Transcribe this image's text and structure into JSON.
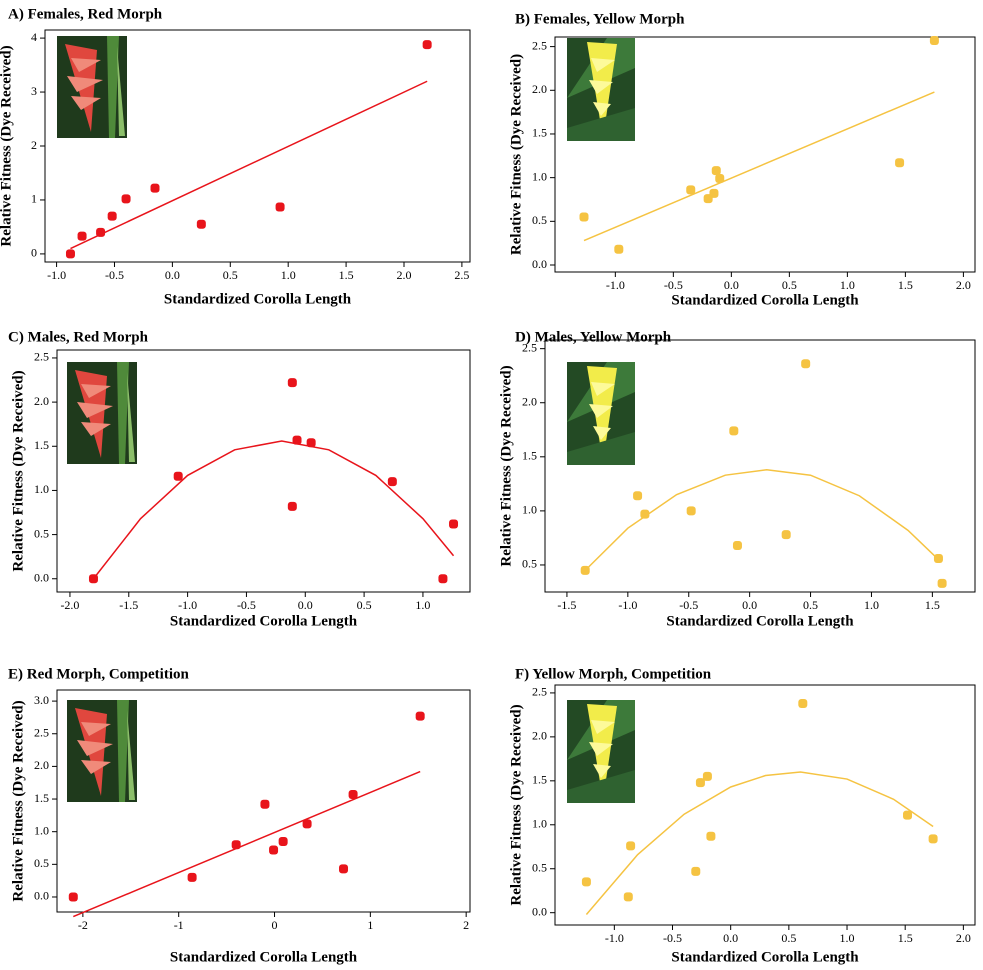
{
  "chart_data": [
    {
      "type": "scatter",
      "title": "A) Females, Red Morph",
      "xlabel": "Standardized Corolla Length",
      "ylabel": "Relative Fitness (Dye Received)",
      "color": "#e8141b",
      "x": [
        -0.88,
        -0.78,
        -0.62,
        -0.52,
        -0.4,
        -0.15,
        0.25,
        0.93,
        2.2
      ],
      "values": [
        0,
        0.33,
        0.4,
        0.7,
        1.02,
        1.22,
        0.55,
        0.87,
        3.88
      ],
      "fit_x": [
        -0.88,
        2.2
      ],
      "fit_y": [
        0.1,
        3.2
      ],
      "xlim": [
        -1.1,
        2.57
      ],
      "ylim": [
        -0.15,
        4.15
      ],
      "xticks": [
        {
          "value": -1,
          "label": "-1.0"
        },
        -0.5,
        {
          "value": 0,
          "label": "0.0"
        },
        0.5,
        {
          "value": 1,
          "label": "1.0"
        },
        1.5,
        {
          "value": 2,
          "label": "2.0"
        },
        2.5
      ],
      "yticks": [
        0,
        1,
        2,
        3,
        4
      ]
    },
    {
      "type": "scatter",
      "title": "B) Females, Yellow Morph",
      "xlabel": "Standardized Corolla Length",
      "ylabel": "Relative Fitness (Dye Received)",
      "color": "#f5c342",
      "x": [
        -1.27,
        -0.97,
        -0.35,
        -0.2,
        -0.15,
        -0.13,
        -0.1,
        1.45,
        1.75
      ],
      "values": [
        0.55,
        0.18,
        0.86,
        0.76,
        0.82,
        1.08,
        0.99,
        1.17,
        2.57
      ],
      "fit_x": [
        -1.27,
        1.75
      ],
      "fit_y": [
        0.28,
        1.98
      ],
      "xlim": [
        -1.52,
        2.1
      ],
      "ylim": [
        -0.08,
        2.61
      ],
      "xticks": [
        {
          "value": -1,
          "label": "-1.0"
        },
        -0.5,
        {
          "value": 0,
          "label": "0.0"
        },
        0.5,
        {
          "value": 1,
          "label": "1.0"
        },
        1.5,
        {
          "value": 2,
          "label": "2.0"
        }
      ],
      "yticks": [
        {
          "value": 0,
          "label": "0.0"
        },
        0.5,
        {
          "value": 1,
          "label": "1.0"
        },
        1.5,
        {
          "value": 2,
          "label": "2.0"
        },
        2.5
      ]
    },
    {
      "type": "scatter",
      "title": "C) Males, Red Morph",
      "xlabel": "Standardized Corolla Length",
      "ylabel": "Relative Fitness (Dye Received)",
      "color": "#e8141b",
      "x": [
        -1.8,
        -1.08,
        -0.11,
        -0.11,
        -0.07,
        0.05,
        0.74,
        1.17,
        1.26
      ],
      "values": [
        0,
        1.16,
        2.22,
        0.82,
        1.57,
        1.54,
        1.1,
        0,
        0.62
      ],
      "fit_x": [
        -1.8,
        -1.4,
        -1.0,
        -0.6,
        -0.2,
        0.2,
        0.6,
        1.0,
        1.26
      ],
      "fit_y": [
        0,
        0.68,
        1.17,
        1.46,
        1.56,
        1.46,
        1.17,
        0.68,
        0.26
      ],
      "xlim": [
        -2.11,
        1.4
      ],
      "ylim": [
        -0.15,
        2.59
      ],
      "xticks": [
        {
          "value": -2,
          "label": "-2.0"
        },
        -1.5,
        {
          "value": -1,
          "label": "-1.0"
        },
        -0.5,
        {
          "value": 0,
          "label": "0.0"
        },
        0.5,
        {
          "value": 1,
          "label": "1.0"
        }
      ],
      "yticks": [
        {
          "value": 0,
          "label": "0.0"
        },
        0.5,
        {
          "value": 1,
          "label": "1.0"
        },
        1.5,
        {
          "value": 2,
          "label": "2.0"
        },
        2.5
      ]
    },
    {
      "type": "scatter",
      "title": "D) Males, Yellow Morph",
      "xlabel": "Standardized Corolla Length",
      "ylabel": "Relative Fitness (Dye Received)",
      "color": "#f5c342",
      "x": [
        -1.35,
        -0.92,
        -0.86,
        -0.48,
        -0.13,
        -0.1,
        0.3,
        0.46,
        1.55,
        1.58
      ],
      "values": [
        0.45,
        1.14,
        0.97,
        1.0,
        1.74,
        0.68,
        0.78,
        2.36,
        0.56,
        0.33
      ],
      "fit_x": [
        -1.35,
        -1.0,
        -0.6,
        -0.2,
        0.14,
        0.5,
        0.9,
        1.3,
        1.55
      ],
      "fit_y": [
        0.45,
        0.84,
        1.15,
        1.33,
        1.38,
        1.33,
        1.14,
        0.82,
        0.55
      ],
      "xlim": [
        -1.68,
        1.85
      ],
      "ylim": [
        0.25,
        2.58
      ],
      "xticks": [
        -1.5,
        {
          "value": -1,
          "label": "-1.0"
        },
        -0.5,
        {
          "value": 0,
          "label": "0.0"
        },
        0.5,
        {
          "value": 1,
          "label": "1.0"
        },
        1.5
      ],
      "yticks": [
        0.5,
        {
          "value": 1,
          "label": "1.0"
        },
        1.5,
        {
          "value": 2,
          "label": "2.0"
        },
        2.5
      ]
    },
    {
      "type": "scatter",
      "title": "E) Red Morph, Competition",
      "xlabel": "Standardized Corolla Length",
      "ylabel": "Relative Fitness (Dye Received)",
      "color": "#e8141b",
      "x": [
        -2.1,
        -0.86,
        -0.4,
        -0.1,
        -0.01,
        0.09,
        0.34,
        0.72,
        0.82,
        1.52
      ],
      "values": [
        0,
        0.3,
        0.8,
        1.42,
        0.72,
        0.85,
        1.12,
        0.43,
        1.57,
        2.77
      ],
      "fit_x": [
        -2.1,
        1.52
      ],
      "fit_y": [
        -0.3,
        1.92
      ],
      "xlim": [
        -2.27,
        2.04
      ],
      "ylim": [
        -0.23,
        3.17
      ],
      "xticks": [
        -2,
        -1,
        0,
        1,
        2
      ],
      "yticks": [
        {
          "value": 0,
          "label": "0.0"
        },
        0.5,
        {
          "value": 1,
          "label": "1.0"
        },
        1.5,
        {
          "value": 2,
          "label": "2.0"
        },
        2.5,
        {
          "value": 3,
          "label": "3.0"
        }
      ]
    },
    {
      "type": "scatter",
      "title": "F) Yellow Morph, Competition",
      "xlabel": "Standardized Corolla Length",
      "ylabel": "Relative Fitness (Dye Received)",
      "color": "#f5c342",
      "x": [
        -1.24,
        -0.88,
        -0.86,
        -0.3,
        -0.26,
        -0.2,
        -0.17,
        0.62,
        1.52,
        1.74
      ],
      "values": [
        0.35,
        0.18,
        0.76,
        0.47,
        1.48,
        1.55,
        0.87,
        2.38,
        1.11,
        0.84
      ],
      "fit_x": [
        -1.24,
        -0.8,
        -0.4,
        0,
        0.3,
        0.6,
        1.0,
        1.4,
        1.74
      ],
      "fit_y": [
        -0.02,
        0.66,
        1.12,
        1.43,
        1.56,
        1.6,
        1.52,
        1.29,
        0.98
      ],
      "xlim": [
        -1.51,
        2.1
      ],
      "ylim": [
        -0.14,
        2.59
      ],
      "xticks": [
        {
          "value": -1,
          "label": "-1.0"
        },
        -0.5,
        {
          "value": 0,
          "label": "0.0"
        },
        0.5,
        {
          "value": 1,
          "label": "1.0"
        },
        1.5,
        {
          "value": 2,
          "label": "2.0"
        }
      ],
      "yticks": [
        {
          "value": 0,
          "label": "0.0"
        },
        0.5,
        {
          "value": 1,
          "label": "1.0"
        },
        1.5,
        {
          "value": 2,
          "label": "2.0"
        },
        2.5
      ]
    }
  ]
}
